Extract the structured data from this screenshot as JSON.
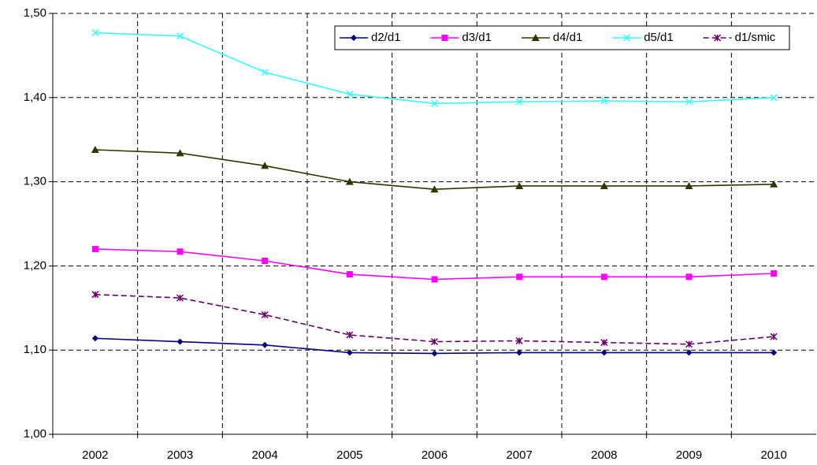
{
  "chart_data": {
    "type": "line",
    "categories": [
      "2002",
      "2003",
      "2004",
      "2005",
      "2006",
      "2007",
      "2008",
      "2009",
      "2010"
    ],
    "series": [
      {
        "name": "d2/d1",
        "color": "#000080",
        "marker": "diamond",
        "dashed": false,
        "values": [
          1.114,
          1.11,
          1.106,
          1.097,
          1.096,
          1.097,
          1.097,
          1.097,
          1.097
        ]
      },
      {
        "name": "d3/d1",
        "color": "#ff00ff",
        "marker": "square",
        "dashed": false,
        "values": [
          1.22,
          1.217,
          1.206,
          1.19,
          1.184,
          1.187,
          1.187,
          1.187,
          1.191
        ]
      },
      {
        "name": "d4/d1",
        "color": "#333300",
        "marker": "triangle",
        "dashed": false,
        "values": [
          1.338,
          1.334,
          1.319,
          1.3,
          1.291,
          1.295,
          1.295,
          1.295,
          1.297
        ]
      },
      {
        "name": "d5/d1",
        "color": "#33ffff",
        "marker": "x",
        "dashed": false,
        "values": [
          1.477,
          1.473,
          1.43,
          1.404,
          1.393,
          1.395,
          1.396,
          1.395,
          1.4
        ]
      },
      {
        "name": "d1/smic",
        "color": "#660066",
        "marker": "star",
        "dashed": true,
        "values": [
          1.166,
          1.162,
          1.142,
          1.118,
          1.11,
          1.111,
          1.109,
          1.107,
          1.116
        ]
      }
    ],
    "ylim": [
      1.0,
      1.5
    ],
    "yticks": [
      {
        "value": 1.0,
        "label": "1,00"
      },
      {
        "value": 1.1,
        "label": "1,10"
      },
      {
        "value": 1.2,
        "label": "1,20"
      },
      {
        "value": 1.3,
        "label": "1,30"
      },
      {
        "value": 1.4,
        "label": "1,40"
      },
      {
        "value": 1.5,
        "label": "1,50"
      }
    ],
    "grid": true,
    "legend": "top-right"
  }
}
